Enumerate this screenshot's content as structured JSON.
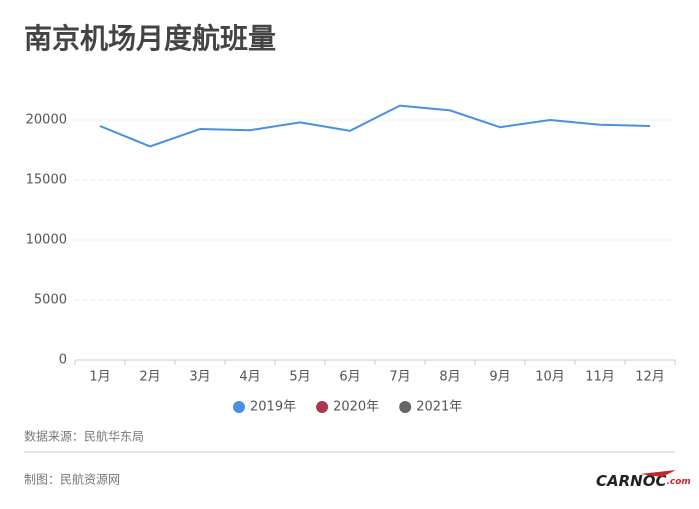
{
  "chart_data": {
    "type": "line",
    "title": "南京机场月度航班量",
    "categories": [
      "1月",
      "2月",
      "3月",
      "4月",
      "5月",
      "6月",
      "7月",
      "8月",
      "9月",
      "10月",
      "11月",
      "12月"
    ],
    "series": [
      {
        "name": "2019年",
        "color": "#4a90e2",
        "values": [
          19500,
          17800,
          19250,
          19150,
          19800,
          19100,
          21200,
          20800,
          19400,
          20000,
          19600,
          19500
        ]
      },
      {
        "name": "2020年",
        "color": "#a8384b",
        "values": [
          null,
          null,
          null,
          null,
          null,
          null,
          null,
          null,
          null,
          null,
          null,
          null
        ]
      },
      {
        "name": "2021年",
        "color": "#666666",
        "values": [
          null,
          null,
          null,
          null,
          null,
          null,
          null,
          null,
          null,
          null,
          null,
          null
        ]
      }
    ],
    "ylim": [
      0,
      25000
    ],
    "yticks": [
      0,
      5000,
      10000,
      15000,
      20000
    ],
    "grid": true
  },
  "source": "数据来源：民航华东局",
  "credit": "制图：民航资源网",
  "logo": {
    "main": "CARNOC",
    "suffix": ".com"
  }
}
